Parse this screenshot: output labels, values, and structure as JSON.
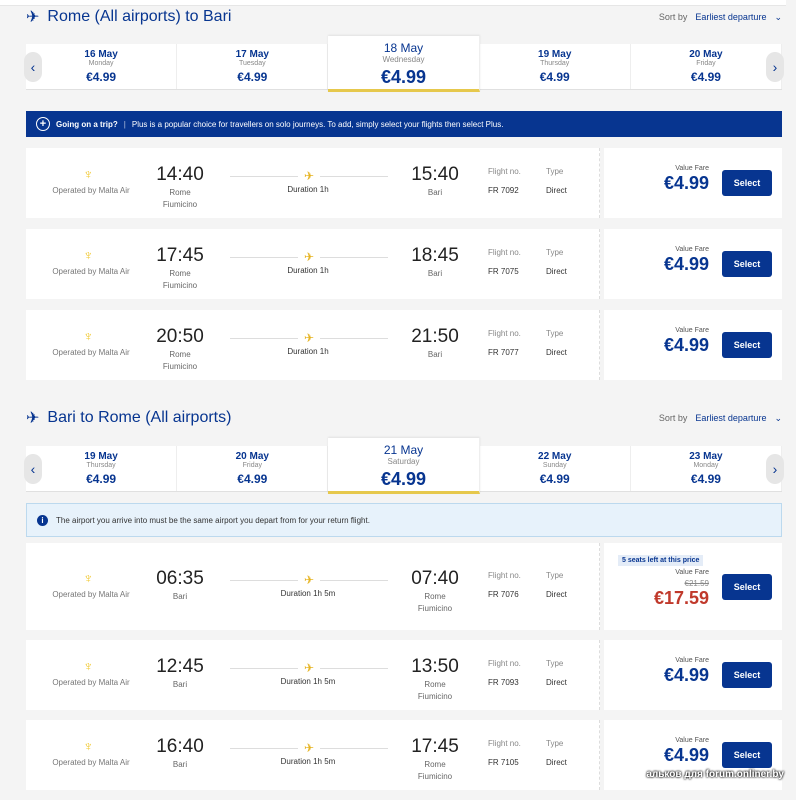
{
  "outbound": {
    "title": "Rome (All airports) to Bari",
    "sort_label": "Sort by",
    "sort_value": "Earliest departure",
    "dates": [
      {
        "date": "16 May",
        "day": "Monday",
        "price": "€4.99"
      },
      {
        "date": "17 May",
        "day": "Tuesday",
        "price": "€4.99"
      },
      {
        "date": "18 May",
        "day": "Wednesday",
        "price": "€4.99",
        "selected": true
      },
      {
        "date": "19 May",
        "day": "Thursday",
        "price": "€4.99"
      },
      {
        "date": "20 May",
        "day": "Friday",
        "price": "€4.99"
      }
    ],
    "banner": {
      "title": "Going on a trip?",
      "separator": "|",
      "text": "Plus is a popular choice for travellers on solo journeys. To add, simply select your flights then select Plus."
    },
    "flights": [
      {
        "operator": "Operated by Malta Air",
        "dep": "14:40",
        "dep_city": [
          "Rome",
          "Fiumicino"
        ],
        "duration": "Duration 1h",
        "arr": "15:40",
        "arr_city": [
          "Bari"
        ],
        "flight_label": "Flight no.",
        "flight_no": "FR 7092",
        "type_label": "Type",
        "type": "Direct",
        "fare": "Value Fare",
        "price": "€4.99",
        "select": "Select"
      },
      {
        "operator": "Operated by Malta Air",
        "dep": "17:45",
        "dep_city": [
          "Rome",
          "Fiumicino"
        ],
        "duration": "Duration 1h",
        "arr": "18:45",
        "arr_city": [
          "Bari"
        ],
        "flight_label": "Flight no.",
        "flight_no": "FR 7075",
        "type_label": "Type",
        "type": "Direct",
        "fare": "Value Fare",
        "price": "€4.99",
        "select": "Select"
      },
      {
        "operator": "Operated by Malta Air",
        "dep": "20:50",
        "dep_city": [
          "Rome",
          "Fiumicino"
        ],
        "duration": "Duration 1h",
        "arr": "21:50",
        "arr_city": [
          "Bari"
        ],
        "flight_label": "Flight no.",
        "flight_no": "FR 7077",
        "type_label": "Type",
        "type": "Direct",
        "fare": "Value Fare",
        "price": "€4.99",
        "select": "Select"
      }
    ]
  },
  "inbound": {
    "title": "Bari to Rome (All airports)",
    "sort_label": "Sort by",
    "sort_value": "Earliest departure",
    "dates": [
      {
        "date": "19 May",
        "day": "Thursday",
        "price": "€4.99"
      },
      {
        "date": "20 May",
        "day": "Friday",
        "price": "€4.99"
      },
      {
        "date": "21 May",
        "day": "Saturday",
        "price": "€4.99",
        "selected": true
      },
      {
        "date": "22 May",
        "day": "Sunday",
        "price": "€4.99"
      },
      {
        "date": "23 May",
        "day": "Monday",
        "price": "€4.99"
      }
    ],
    "info": "The airport you arrive into must be the same airport you depart from for your return flight.",
    "flights": [
      {
        "operator": "Operated by Malta Air",
        "dep": "06:35",
        "dep_city": [
          "Bari"
        ],
        "duration": "Duration 1h 5m",
        "arr": "07:40",
        "arr_city": [
          "Rome",
          "Fiumicino"
        ],
        "flight_label": "Flight no.",
        "flight_no": "FR 7076",
        "type_label": "Type",
        "type": "Direct",
        "seats": "5 seats left at this price",
        "fare": "Value Fare",
        "old_price": "€21.59",
        "price": "€17.59",
        "discounted": true,
        "select": "Select"
      },
      {
        "operator": "Operated by Malta Air",
        "dep": "12:45",
        "dep_city": [
          "Bari"
        ],
        "duration": "Duration 1h 5m",
        "arr": "13:50",
        "arr_city": [
          "Rome",
          "Fiumicino"
        ],
        "flight_label": "Flight no.",
        "flight_no": "FR 7093",
        "type_label": "Type",
        "type": "Direct",
        "fare": "Value Fare",
        "price": "€4.99",
        "select": "Select"
      },
      {
        "operator": "Operated by Malta Air",
        "dep": "16:40",
        "dep_city": [
          "Bari"
        ],
        "duration": "Duration 1h 5m",
        "arr": "17:45",
        "arr_city": [
          "Rome",
          "Fiumicino"
        ],
        "flight_label": "Flight no.",
        "flight_no": "FR 7105",
        "type_label": "Type",
        "type": "Direct",
        "fare": "Value Fare",
        "price": "€4.99",
        "select": "Select"
      }
    ]
  },
  "watermark": "альков для forum.onliner.by",
  "colors": {
    "brand": "#073590",
    "accent": "#f1c933",
    "discount": "#c0392b"
  }
}
